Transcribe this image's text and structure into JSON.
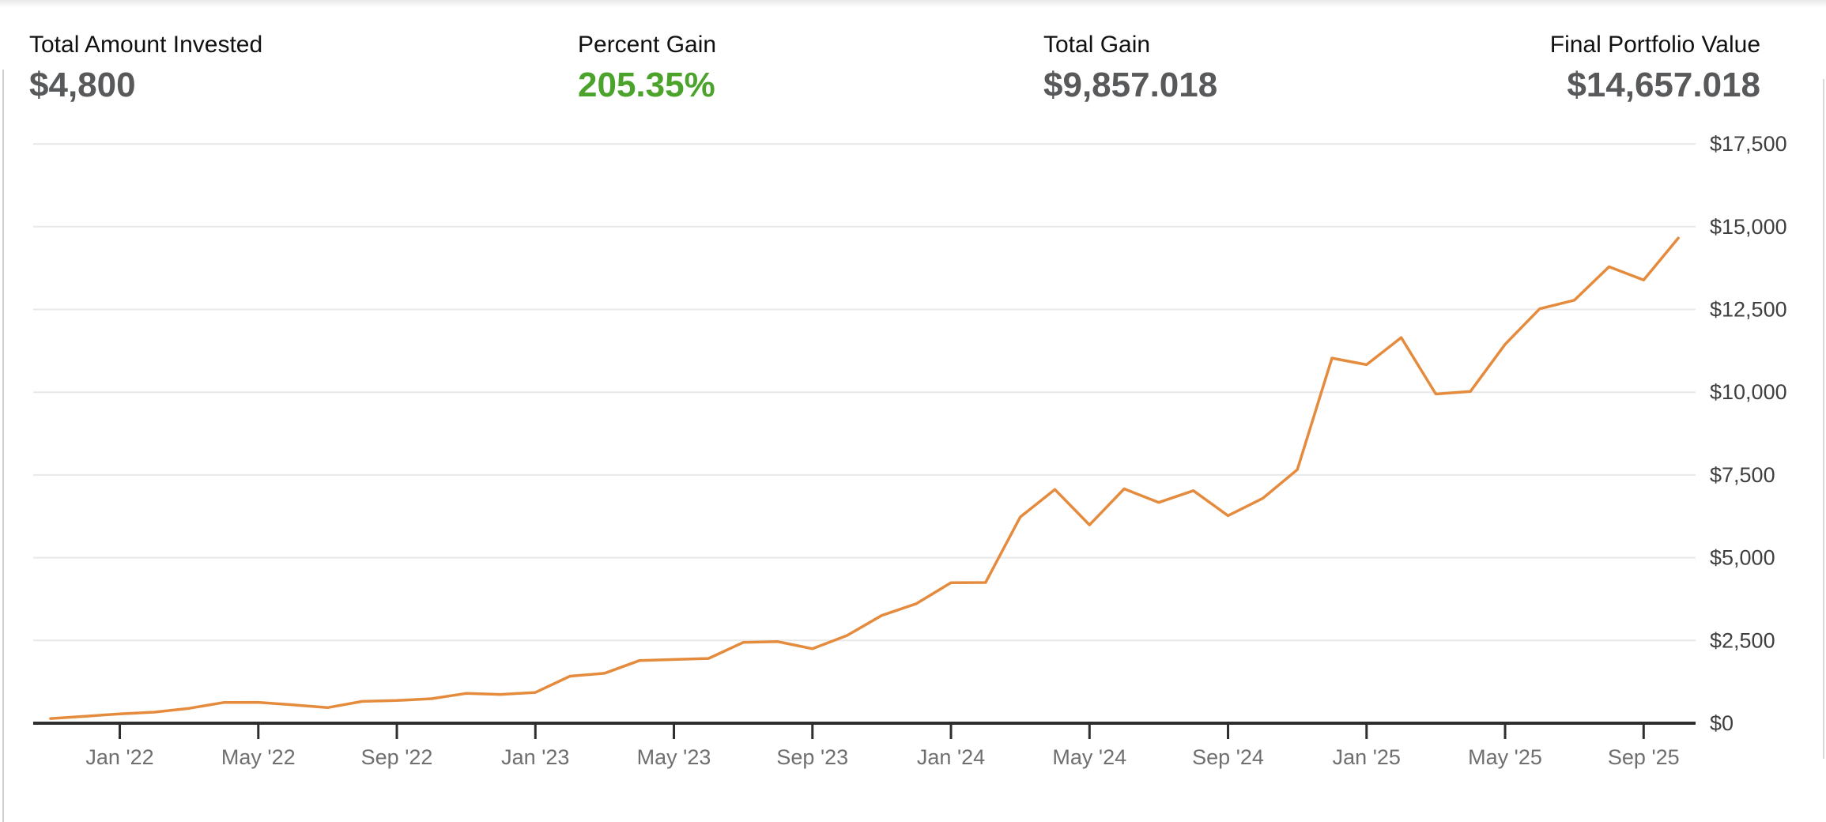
{
  "stats": [
    {
      "label": "Total Amount Invested",
      "value": "$4,800",
      "value_color": "#58595b"
    },
    {
      "label": "Percent Gain",
      "value": "205.35%",
      "value_color": "#4ba32b"
    },
    {
      "label": "Total Gain",
      "value": "$9,857.018",
      "value_color": "#58595b"
    },
    {
      "label": "Final Portfolio Value",
      "value": "$14,657.018",
      "value_color": "#58595b"
    }
  ],
  "chart_data": {
    "type": "line",
    "title": "",
    "xlabel": "",
    "ylabel": "",
    "series_name": "Portfolio Value",
    "x": [
      "Nov '21",
      "Dec '21",
      "Jan '22",
      "Feb '22",
      "Mar '22",
      "Apr '22",
      "May '22",
      "Jun '22",
      "Jul '22",
      "Aug '22",
      "Sep '22",
      "Oct '22",
      "Nov '22",
      "Dec '22",
      "Jan '23",
      "Feb '23",
      "Mar '23",
      "Apr '23",
      "May '23",
      "Jun '23",
      "Jul '23",
      "Aug '23",
      "Sep '23",
      "Oct '23",
      "Nov '23",
      "Dec '23",
      "Jan '24",
      "Feb '24",
      "Mar '24",
      "Apr '24",
      "May '24",
      "Jun '24",
      "Jul '24",
      "Aug '24",
      "Sep '24",
      "Oct '24",
      "Nov '24",
      "Dec '24",
      "Jan '25",
      "Feb '25",
      "Mar '25",
      "Apr '25",
      "May '25",
      "Jun '25",
      "Jul '25",
      "Aug '25",
      "Sep '25",
      "Oct '25"
    ],
    "values": [
      140,
      210,
      280,
      335,
      450,
      625,
      630,
      555,
      470,
      660,
      685,
      740,
      900,
      870,
      930,
      1420,
      1510,
      1890,
      1925,
      1955,
      2440,
      2465,
      2250,
      2650,
      3255,
      3610,
      4245,
      4250,
      6230,
      7060,
      5990,
      7080,
      6670,
      7025,
      6270,
      6790,
      7660,
      11030,
      10830,
      11650,
      9945,
      10025,
      11445,
      12520,
      12780,
      13790,
      13390,
      14657.018
    ],
    "y_ticks": [
      {
        "value": 0,
        "label": "$0"
      },
      {
        "value": 2500,
        "label": "$2,500"
      },
      {
        "value": 5000,
        "label": "$5,000"
      },
      {
        "value": 7500,
        "label": "$7,500"
      },
      {
        "value": 10000,
        "label": "$10,000"
      },
      {
        "value": 12500,
        "label": "$12,500"
      },
      {
        "value": 15000,
        "label": "$15,000"
      },
      {
        "value": 17500,
        "label": "$17,500"
      }
    ],
    "x_ticks": {
      "start_index": 2,
      "step": 4,
      "labels": [
        "Jan '22",
        "May '22",
        "Sep '22",
        "Jan '23",
        "May '23",
        "Sep '23",
        "Jan '24",
        "May '24",
        "Sep '24",
        "Jan '25",
        "May '25",
        "Sep '25"
      ]
    },
    "ylim": [
      0,
      18200
    ],
    "grid": "horizontal",
    "legend": "none",
    "y_axis_position": "right",
    "line_color": "#e58b3d",
    "axis_color": "#2e2e2e",
    "grid_color": "#e8e8e8",
    "y_label_color": "#3f3f3f",
    "x_label_color": "#6f6f6f"
  }
}
